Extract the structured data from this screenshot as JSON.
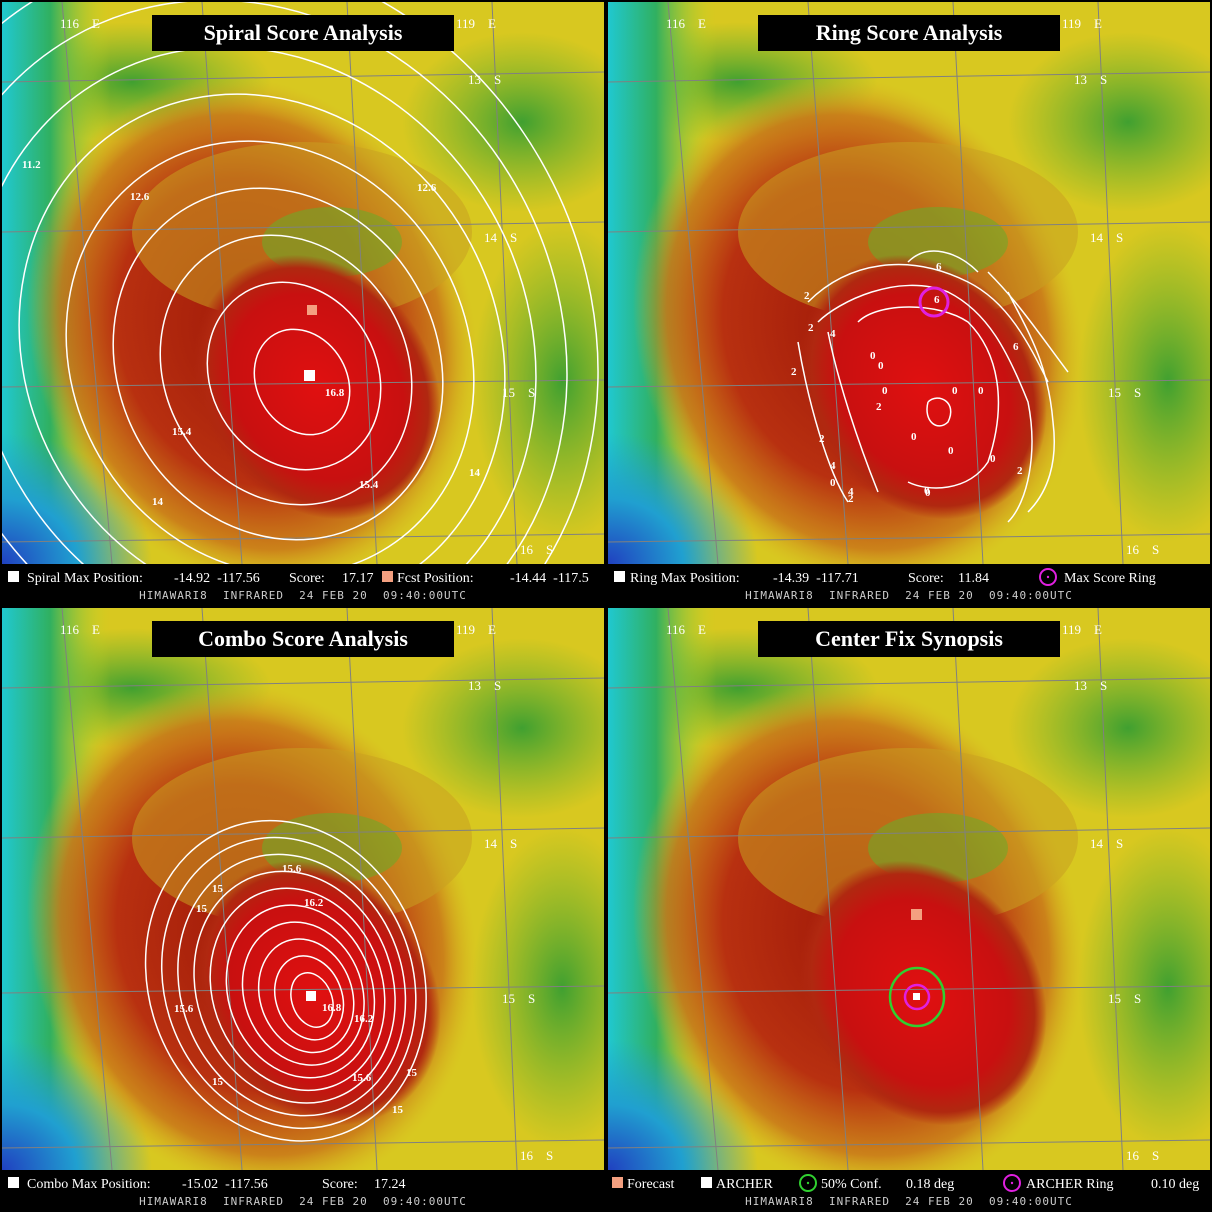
{
  "panels": [
    {
      "title": "Spiral Score Analysis",
      "lon_labels": [
        "116    E",
        "119    E"
      ],
      "lat_labels": [
        "13    S",
        "14    S",
        "15    S",
        "16    S"
      ],
      "contour_labels": [
        "11.2",
        "12.6",
        "12.6",
        "14",
        "15.4",
        "16.8",
        "15.4",
        "14",
        "14"
      ],
      "legend": [
        "Spiral Max Position:",
        "-14.92  -117.56",
        "Score:",
        "17.17",
        "Fcst Position:",
        "-14.44  -117.5"
      ],
      "footer": "HIMAWARI8  INFRARED  24 FEB 20  09:40:00UTC"
    },
    {
      "title": "Ring Score Analysis",
      "lon_labels": [
        "116    E",
        "119    E"
      ],
      "lat_labels": [
        "13    S",
        "14    S",
        "15    S",
        "16    S"
      ],
      "contour_labels": [
        "6",
        "6",
        "2",
        "2",
        "4",
        "2",
        "0",
        "0",
        "0",
        "0",
        "0",
        "2",
        "0",
        "0",
        "0",
        "2",
        "4",
        "0",
        "0",
        "2",
        "0",
        "2",
        "4",
        "6"
      ],
      "legend": [
        "Ring Max Position:",
        "-14.39  -117.71",
        "Score:",
        "11.84",
        "Max Score Ring"
      ],
      "footer": "HIMAWARI8  INFRARED  24 FEB 20  09:40:00UTC"
    },
    {
      "title": "Combo Score Analysis",
      "lon_labels": [
        "116    E",
        "119    E"
      ],
      "lat_labels": [
        "13    S",
        "14    S",
        "15    S",
        "16    S"
      ],
      "contour_labels": [
        "15.6",
        "15",
        "15",
        "16.2",
        "16.8",
        "16.2",
        "15.6",
        "15.6",
        "15",
        "15",
        "15"
      ],
      "legend": [
        "Combo Max Position:",
        "-15.02  -117.56",
        "Score:",
        "17.24"
      ],
      "footer": "HIMAWARI8  INFRARED  24 FEB 20  09:40:00UTC"
    },
    {
      "title": "Center Fix Synopsis",
      "lon_labels": [
        "116    E",
        "119    E"
      ],
      "lat_labels": [
        "13    S",
        "14    S",
        "15    S",
        "16    S"
      ],
      "contour_labels": [],
      "legend": [
        "Forecast",
        "ARCHER",
        "50% Conf.",
        "0.18 deg",
        "ARCHER Ring",
        "0.10 deg"
      ],
      "footer": "HIMAWARI8  INFRARED  24 FEB 20  09:40:00UTC"
    }
  ]
}
